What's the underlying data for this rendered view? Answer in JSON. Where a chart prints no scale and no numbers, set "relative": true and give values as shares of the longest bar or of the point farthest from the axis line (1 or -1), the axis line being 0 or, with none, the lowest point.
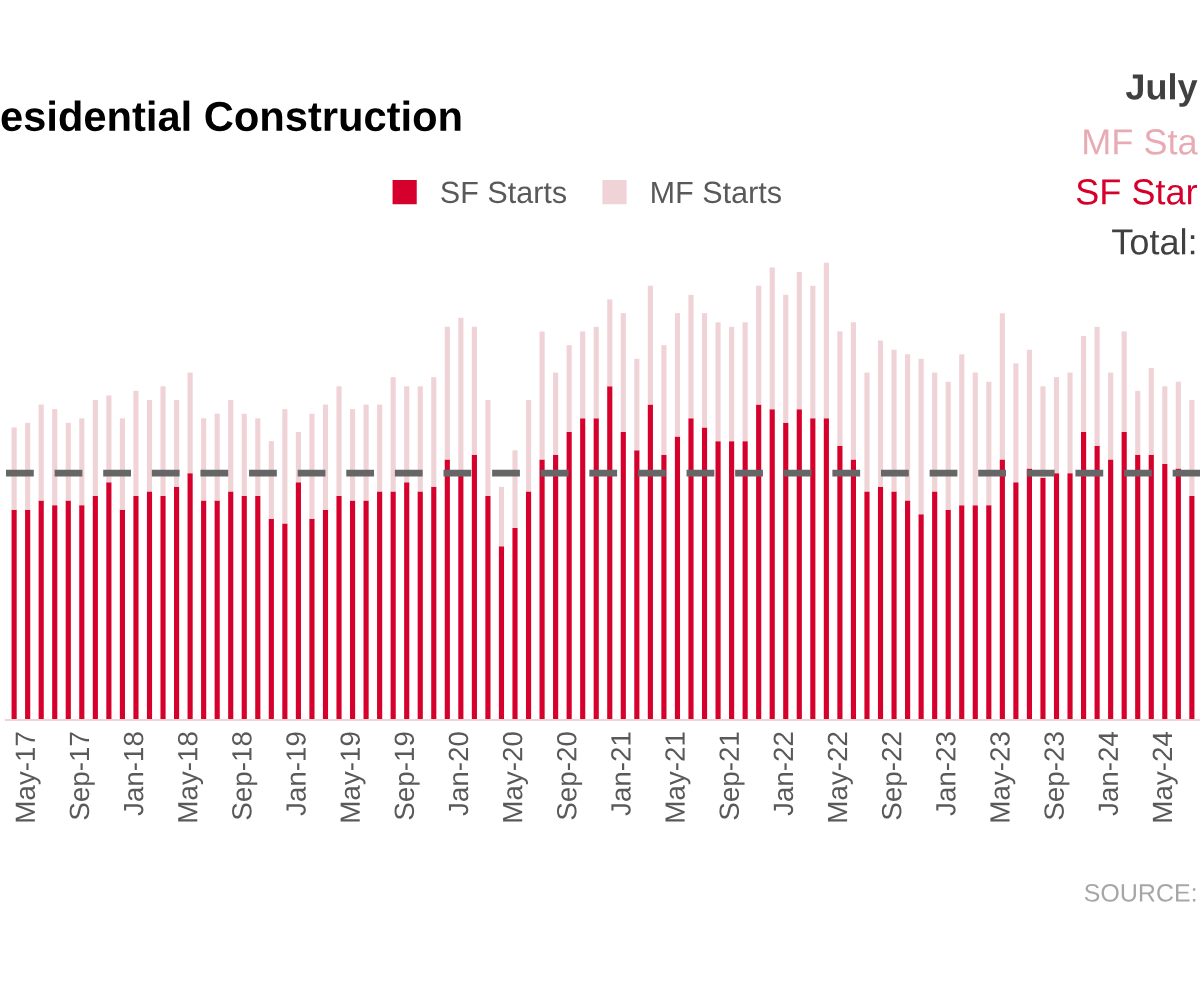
{
  "chart_data": {
    "type": "bar",
    "title": "esidential Construction",
    "relative": true,
    "stacked": true,
    "legend": "top",
    "grid": false,
    "categories": [
      null,
      "May-17",
      null,
      null,
      null,
      "Sep-17",
      null,
      null,
      null,
      "Jan-18",
      null,
      null,
      null,
      "May-18",
      null,
      null,
      null,
      "Sep-18",
      null,
      null,
      null,
      "Jan-19",
      null,
      null,
      null,
      "May-19",
      null,
      null,
      null,
      "Sep-19",
      null,
      null,
      null,
      "Jan-20",
      null,
      null,
      null,
      "May-20",
      null,
      null,
      null,
      "Sep-20",
      null,
      null,
      null,
      "Jan-21",
      null,
      null,
      null,
      "May-21",
      null,
      null,
      null,
      "Sep-21",
      null,
      null,
      null,
      "Jan-22",
      null,
      null,
      null,
      "May-22",
      null,
      null,
      null,
      "Sep-22",
      null,
      null,
      null,
      "Jan-23",
      null,
      null,
      null,
      "May-23",
      null,
      null,
      null,
      "Sep-23",
      null,
      null,
      null,
      "Jan-24",
      null,
      null,
      null,
      "May-24",
      null,
      null
    ],
    "series": [
      {
        "name": "SF Starts",
        "color": "#d6002c",
        "values": [
          0.46,
          0.46,
          0.48,
          0.47,
          0.48,
          0.47,
          0.49,
          0.52,
          0.46,
          0.49,
          0.5,
          0.49,
          0.51,
          0.54,
          0.48,
          0.48,
          0.5,
          0.49,
          0.49,
          0.44,
          0.43,
          0.52,
          0.44,
          0.46,
          0.49,
          0.48,
          0.48,
          0.5,
          0.5,
          0.52,
          0.5,
          0.51,
          0.57,
          0.54,
          0.58,
          0.49,
          0.38,
          0.42,
          0.5,
          0.57,
          0.58,
          0.63,
          0.66,
          0.66,
          0.73,
          0.63,
          0.59,
          0.69,
          0.58,
          0.62,
          0.66,
          0.64,
          0.61,
          0.61,
          0.61,
          0.69,
          0.68,
          0.65,
          0.68,
          0.66,
          0.66,
          0.6,
          0.57,
          0.5,
          0.51,
          0.5,
          0.48,
          0.45,
          0.5,
          0.46,
          0.47,
          0.47,
          0.47,
          0.57,
          0.52,
          0.55,
          0.53,
          0.54,
          0.54,
          0.63,
          0.6,
          0.57,
          0.63,
          0.58,
          0.58,
          0.56,
          0.55,
          0.49
        ]
      },
      {
        "name": "MF Starts",
        "color": "#f0d3d7",
        "values": [
          0.18,
          0.19,
          0.21,
          0.21,
          0.17,
          0.19,
          0.21,
          0.19,
          0.2,
          0.23,
          0.2,
          0.24,
          0.19,
          0.22,
          0.18,
          0.19,
          0.2,
          0.18,
          0.17,
          0.17,
          0.25,
          0.11,
          0.23,
          0.23,
          0.24,
          0.2,
          0.21,
          0.19,
          0.25,
          0.21,
          0.23,
          0.24,
          0.29,
          0.34,
          0.28,
          0.21,
          0.13,
          0.17,
          0.2,
          0.28,
          0.18,
          0.19,
          0.19,
          0.2,
          0.19,
          0.26,
          0.2,
          0.26,
          0.24,
          0.27,
          0.27,
          0.25,
          0.26,
          0.25,
          0.26,
          0.26,
          0.31,
          0.28,
          0.3,
          0.29,
          0.34,
          0.25,
          0.3,
          0.26,
          0.32,
          0.31,
          0.32,
          0.34,
          0.26,
          0.28,
          0.33,
          0.29,
          0.27,
          0.32,
          0.26,
          0.26,
          0.2,
          0.21,
          0.22,
          0.21,
          0.26,
          0.19,
          0.22,
          0.14,
          0.19,
          0.17,
          0.19,
          0.21
        ]
      }
    ],
    "ref_lines": [
      {
        "axis": "y",
        "value": 0.54,
        "color": "#666666",
        "line_style": "dashed"
      }
    ],
    "annotations": [
      "July",
      "MF Sta",
      "SF Star",
      "Total:",
      "SOURCE:"
    ]
  }
}
